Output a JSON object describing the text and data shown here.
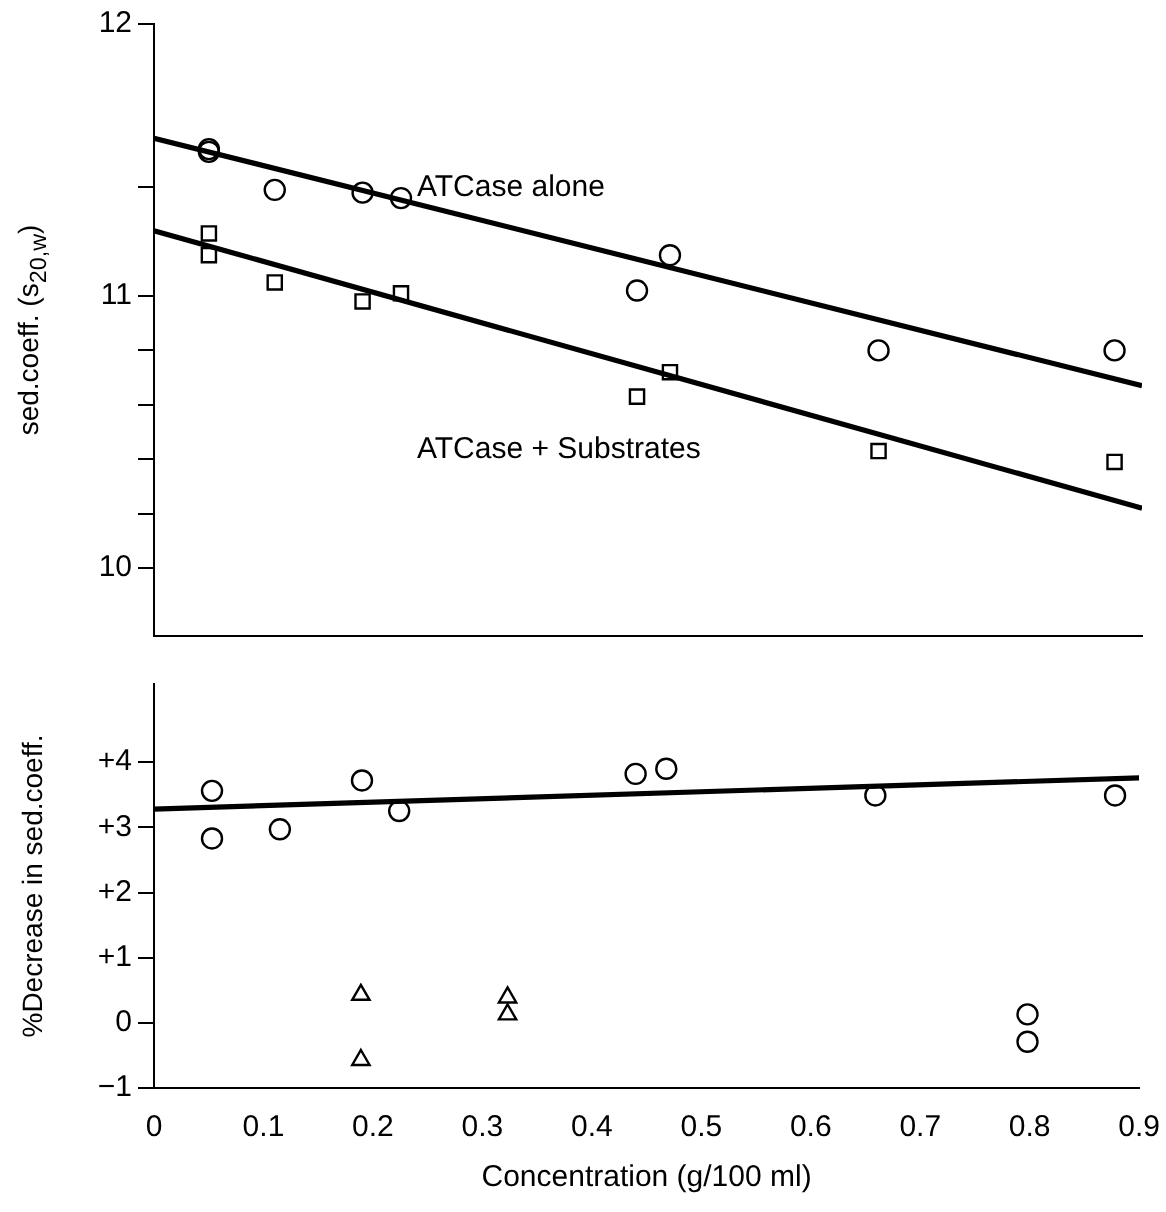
{
  "chart_data": [
    {
      "type": "scatter",
      "ylabel": "sed.coeff. (s$_{20,w}$)",
      "xlim": [
        0,
        0.9
      ],
      "xticks": [
        0,
        0.1,
        0.2,
        0.3,
        0.4,
        0.5,
        0.6,
        0.7,
        0.8,
        0.9
      ],
      "ylim": [
        9.75,
        12
      ],
      "yticks": [
        10,
        {
          "value": 10.2,
          "label": null
        },
        {
          "value": 10.4,
          "label": null
        },
        {
          "value": 10.6,
          "label": null
        },
        {
          "value": 10.8,
          "label": null
        },
        11,
        {
          "value": 11.4,
          "label": null
        },
        12
      ],
      "tick_labels": "y",
      "grid": false,
      "legend": false,
      "series": [
        {
          "name": "ATCase alone",
          "color": "#000000",
          "marker": "circle",
          "x": [
            0.05,
            0.05,
            0.11,
            0.19,
            0.225,
            0.44,
            0.47,
            0.66,
            0.875
          ],
          "values": [
            11.54,
            11.53,
            11.39,
            11.38,
            11.36,
            11.02,
            11.15,
            10.8,
            10.8
          ]
        },
        {
          "name": "ATCase + Substrates",
          "color": "#000000",
          "marker": "square",
          "x": [
            0.05,
            0.05,
            0.11,
            0.19,
            0.225,
            0.44,
            0.47,
            0.66,
            0.875
          ],
          "values": [
            11.23,
            11.15,
            11.05,
            10.98,
            11.01,
            10.63,
            10.72,
            10.43,
            10.39
          ]
        },
        {
          "type": "line",
          "color": "#000000",
          "marker": "none",
          "x": [
            0,
            0.9
          ],
          "values": [
            11.58,
            10.67
          ]
        },
        {
          "type": "line",
          "color": "#000000",
          "marker": "none",
          "x": [
            0,
            0.9
          ],
          "values": [
            11.24,
            10.22
          ]
        }
      ]
    },
    {
      "type": "scatter",
      "xlabel": "Concentration (g/100 ml)",
      "ylabel": "%Decrease in sed.coeff.",
      "xlim": [
        0,
        0.9
      ],
      "xticks": [
        0,
        0.1,
        0.2,
        0.3,
        0.4,
        0.5,
        0.6,
        0.7,
        0.8,
        0.9
      ],
      "ylim": [
        -1,
        5.2
      ],
      "yticks": [
        {
          "value": -1,
          "label": "−1"
        },
        0,
        {
          "value": 1,
          "label": "+1"
        },
        {
          "value": 2,
          "label": "+2"
        },
        {
          "value": 3,
          "label": "+3"
        },
        {
          "value": 4,
          "label": "+4"
        }
      ],
      "grid": false,
      "legend": false,
      "series": [
        {
          "color": "#000000",
          "marker": "circle",
          "x": [
            0.053,
            0.053,
            0.115,
            0.19,
            0.224,
            0.44,
            0.468,
            0.659,
            0.878,
            0.798,
            0.798
          ],
          "values": [
            3.56,
            2.83,
            2.97,
            3.72,
            3.25,
            3.82,
            3.9,
            3.49,
            3.49,
            0.13,
            -0.29
          ]
        },
        {
          "color": "#000000",
          "marker": "triangle",
          "x": [
            0.189,
            0.189,
            0.323,
            0.323
          ],
          "values": [
            0.43,
            -0.57,
            0.39,
            0.13
          ]
        },
        {
          "type": "line",
          "color": "#000000",
          "marker": "none",
          "x": [
            0,
            0.9
          ],
          "values": [
            3.28,
            3.76
          ]
        }
      ]
    }
  ]
}
